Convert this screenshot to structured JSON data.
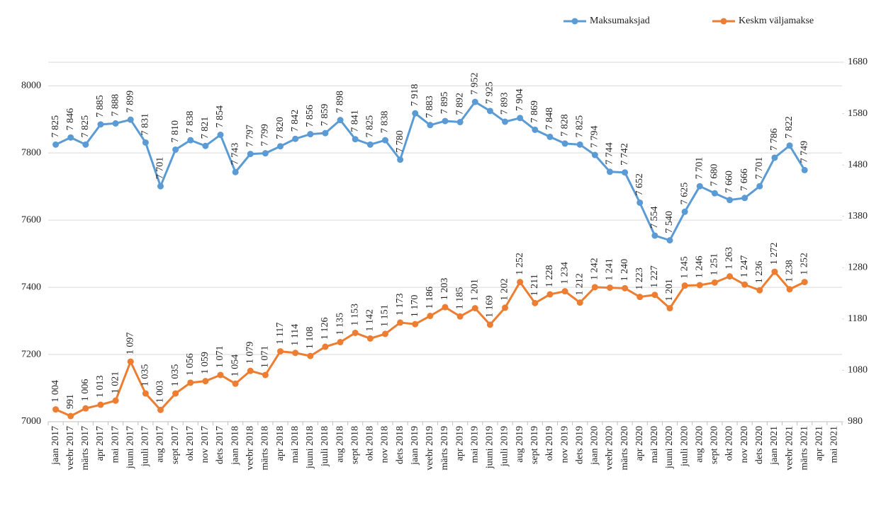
{
  "chart_data": {
    "type": "line",
    "categories": [
      "jaan 2017",
      "veebr 2017",
      "märts 2017",
      "apr 2017",
      "mai 2017",
      "juuni 2017",
      "juuli 2017",
      "aug 2017",
      "sept 2017",
      "okt 2017",
      "nov 2017",
      "dets 2017",
      "jaan 2018",
      "veebr 2018",
      "märts 2018",
      "apr 2018",
      "mai 2018",
      "juuni 2018",
      "juuli 2018",
      "aug 2018",
      "sept 2018",
      "okt 2018",
      "nov 2018",
      "dets 2018",
      "jaan 2019",
      "veebr 2019",
      "märts 2019",
      "apr 2019",
      "mai 2019",
      "juuni 2019",
      "juuli 2019",
      "aug 2019",
      "sept 2019",
      "okt 2019",
      "nov 2019",
      "dets 2019",
      "jaan 2020",
      "veebr 2020",
      "märts 2020",
      "apr 2020",
      "mai 2020",
      "juuni 2020",
      "juuli 2020",
      "aug 2020",
      "sept 2020",
      "okt 2020",
      "nov 2020",
      "dets 2020",
      "jaan 2021",
      "veebr 2021",
      "märts 2021",
      "apr 2021",
      "mai 2021"
    ],
    "series": [
      {
        "name": "Maksumaksjad",
        "color": "#5b9bd5",
        "values": [
          7825,
          7846,
          7825,
          7885,
          7888,
          7899,
          7831,
          7701,
          7810,
          7838,
          7821,
          7854,
          7743,
          7797,
          7799,
          7820,
          7842,
          7856,
          7859,
          7898,
          7841,
          7825,
          7838,
          7780,
          7918,
          7883,
          7895,
          7892,
          7952,
          7925,
          7893,
          7904,
          7869,
          7848,
          7828,
          7825,
          7794,
          7744,
          7742,
          7652,
          7554,
          7540,
          7625,
          7701,
          7680,
          7660,
          7666,
          7701,
          7786,
          7822,
          7749,
          null,
          null
        ],
        "value_labels": [
          "7 825",
          "7 846",
          "7 825",
          "7 885",
          "7 888",
          "7 899",
          "7 831",
          "7 701",
          "7 810",
          "7 838",
          "7 821",
          "7 854",
          "7 743",
          "7 797",
          "7 799",
          "7 820",
          "7 842",
          "7 856",
          "7 859",
          "7 898",
          "7 841",
          "7 825",
          "7 838",
          "7 780",
          "7 918",
          "7 883",
          "7 895",
          "7 892",
          "7 952",
          "7 925",
          "7 893",
          "7 904",
          "7 869",
          "7 848",
          "7 828",
          "7 825",
          "7 794",
          "7 744",
          "7 742",
          "7 652",
          "7 554",
          "7 540",
          "7 625",
          "7 701",
          "7 680",
          "7 660",
          "7 666",
          "7 701",
          "7 786",
          "7 822",
          "7 749",
          null,
          null
        ]
      },
      {
        "name": "Keskm väljamakse",
        "color": "#ed7d31",
        "axis": "y2",
        "values": [
          1004,
          991,
          1006,
          1013,
          1021,
          1097,
          1035,
          1003,
          1035,
          1056,
          1059,
          1071,
          1054,
          1079,
          1071,
          1117,
          1114,
          1108,
          1126,
          1135,
          1153,
          1142,
          1151,
          1173,
          1170,
          1186,
          1203,
          1185,
          1201,
          1169,
          1202,
          1252,
          1211,
          1228,
          1234,
          1212,
          1242,
          1241,
          1240,
          1223,
          1227,
          1201,
          1245,
          1246,
          1251,
          1263,
          1247,
          1236,
          1272,
          1238,
          1252,
          null,
          null
        ],
        "value_labels": [
          "1 004",
          "991",
          "1 006",
          "1 013",
          "1 021",
          "1 097",
          "1 035",
          "1 003",
          "1 035",
          "1 056",
          "1 059",
          "1 071",
          "1 054",
          "1 079",
          "1 071",
          "1 117",
          "1 114",
          "1 108",
          "1 126",
          "1 135",
          "1 153",
          "1 142",
          "1 151",
          "1 173",
          "1 170",
          "1 186",
          "1 203",
          "1 185",
          "1 201",
          "1 169",
          "1 202",
          "1 252",
          "1 211",
          "1 228",
          "1 234",
          "1 212",
          "1 242",
          "1 241",
          "1 240",
          "1 223",
          "1 227",
          "1 201",
          "1 245",
          "1 246",
          "1 251",
          "1 263",
          "1 247",
          "1 236",
          "1 272",
          "1 238",
          "1 252",
          null,
          null
        ]
      }
    ],
    "ylim": [
      7000,
      8070
    ],
    "yticks": [
      7000,
      7200,
      7400,
      7600,
      7800,
      8000
    ],
    "y2lim": [
      980,
      1680
    ],
    "y2ticks": [
      980,
      1080,
      1180,
      1280,
      1380,
      1480,
      1580,
      1680
    ],
    "grid": true,
    "legend": "top-right"
  }
}
